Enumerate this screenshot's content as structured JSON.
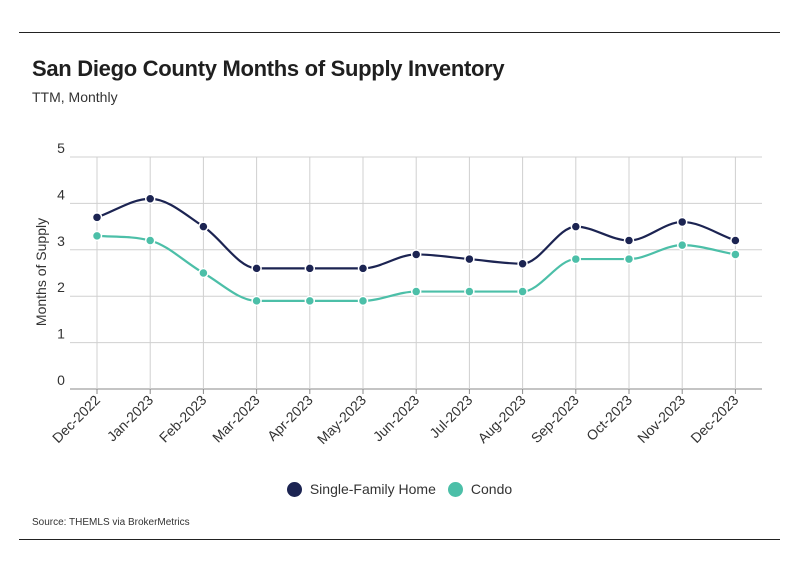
{
  "chart_data": {
    "type": "line",
    "title": "San Diego County Months of Supply Inventory",
    "subtitle": "TTM, Monthly",
    "ylabel": "Months of Supply",
    "xlabel": "",
    "ylim": [
      0,
      5
    ],
    "yticks": [
      "0",
      "1",
      "2",
      "3",
      "4",
      "5"
    ],
    "categories": [
      "Dec-2022",
      "Jan-2023",
      "Feb-2023",
      "Mar-2023",
      "Apr-2023",
      "May-2023",
      "Jun-2023",
      "Jul-2023",
      "Aug-2023",
      "Sep-2023",
      "Oct-2023",
      "Nov-2023",
      "Dec-2023"
    ],
    "series": [
      {
        "name": "Single-Family Home",
        "color": "#1c2452",
        "values": [
          3.7,
          4.1,
          3.5,
          2.6,
          2.6,
          2.6,
          2.9,
          2.8,
          2.7,
          3.5,
          3.2,
          3.6,
          3.2
        ]
      },
      {
        "name": "Condo",
        "color": "#4cbfa8",
        "values": [
          3.3,
          3.2,
          2.5,
          1.9,
          1.9,
          1.9,
          2.1,
          2.1,
          2.1,
          2.8,
          2.8,
          3.1,
          2.9
        ]
      }
    ],
    "grid": true,
    "legend_position": "bottom-center",
    "source": "Source:  THEMLS via BrokerMetrics"
  }
}
